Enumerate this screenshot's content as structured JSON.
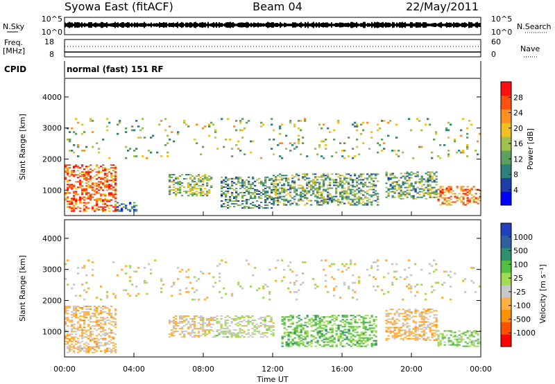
{
  "header": {
    "station": "Syowa East (fitACF)",
    "beam": "Beam 04",
    "date": "22/May/2011"
  },
  "top_panels": {
    "nsky_label": "N.Sky",
    "nsky_ticks": [
      "10^5",
      "10^0"
    ],
    "nsearch_label": "N.Search",
    "nsearch_ticks": [
      "10^5",
      "10^0"
    ],
    "freq_label": "Freq.",
    "freq_unit": "[MHz]",
    "freq_ticks": [
      "18",
      "8"
    ],
    "nave_label": "Nave",
    "nave_ticks": [
      "60",
      "0"
    ],
    "cpid_label": "CPID",
    "cpid_text": "normal (fast) 151 RF"
  },
  "colors": {
    "power_scale": [
      "#0000ff",
      "#1f3fa6",
      "#2f7f7f",
      "#5fa05f",
      "#9fc24f",
      "#f0c020",
      "#ff9020",
      "#ff5010",
      "#ff1010"
    ],
    "velocity_scale": [
      "#ff0000",
      "#ff5000",
      "#ff9000",
      "#ffb040",
      "#c8c8c8",
      "#a0dc50",
      "#50c040",
      "#2f8f70",
      "#2f5fa0",
      "#2040c0"
    ]
  },
  "chart_data": [
    {
      "type": "heatmap",
      "name": "power",
      "ylabel": "Slant Range [km]",
      "yticks": [
        "1000",
        "2000",
        "3000",
        "4000"
      ],
      "ylim": [
        180,
        4600
      ],
      "xlim": [
        0,
        24
      ],
      "colorbar_label": "Power [dB]",
      "colorbar_ticks": [
        "4",
        "8",
        "12",
        "16",
        "20",
        "24",
        "28"
      ],
      "colorbar_range": [
        0,
        30
      ],
      "regions": [
        {
          "t": [
            0.0,
            3.0
          ],
          "r": [
            300,
            1800
          ],
          "v": 24
        },
        {
          "t": [
            3.0,
            4.2
          ],
          "r": [
            300,
            600
          ],
          "v": 8
        },
        {
          "t": [
            6.0,
            8.5
          ],
          "r": [
            800,
            1500
          ],
          "v": 14
        },
        {
          "t": [
            9.0,
            12.0
          ],
          "r": [
            400,
            1400
          ],
          "v": 10
        },
        {
          "t": [
            12.0,
            18.0
          ],
          "r": [
            500,
            1500
          ],
          "v": 12
        },
        {
          "t": [
            18.5,
            21.5
          ],
          "r": [
            700,
            1600
          ],
          "v": 12
        },
        {
          "t": [
            21.5,
            24.0
          ],
          "r": [
            500,
            1100
          ],
          "v": 22
        },
        {
          "t": [
            0.0,
            24.0
          ],
          "r": [
            2000,
            3300
          ],
          "v": 14
        }
      ]
    },
    {
      "type": "heatmap",
      "name": "velocity",
      "ylabel": "Slant Range [km]",
      "yticks": [
        "1000",
        "2000",
        "3000",
        "4000"
      ],
      "ylim": [
        180,
        4600
      ],
      "xlim": [
        0,
        24
      ],
      "xticks": [
        "00:00",
        "04:00",
        "08:00",
        "12:00",
        "16:00",
        "20:00",
        "00:00"
      ],
      "xlabel": "Time UT",
      "colorbar_label": "Velocity [m s⁻¹]",
      "colorbar_ticks": [
        "-1000",
        "-500",
        "-100",
        "-25",
        "25",
        "100",
        "500",
        "1000"
      ],
      "colorbar_range": [
        -1200,
        1200
      ],
      "regions": [
        {
          "t": [
            0.0,
            3.0
          ],
          "r": [
            300,
            1800
          ],
          "v": -300
        },
        {
          "t": [
            6.0,
            8.5
          ],
          "r": [
            800,
            1500
          ],
          "v": -200
        },
        {
          "t": [
            8.5,
            12.0
          ],
          "r": [
            800,
            1500
          ],
          "v": 0
        },
        {
          "t": [
            12.5,
            18.0
          ],
          "r": [
            500,
            1500
          ],
          "v": 300
        },
        {
          "t": [
            18.5,
            21.5
          ],
          "r": [
            700,
            1700
          ],
          "v": -300
        },
        {
          "t": [
            21.5,
            24.0
          ],
          "r": [
            500,
            1000
          ],
          "v": 150
        },
        {
          "t": [
            0.0,
            24.0
          ],
          "r": [
            2000,
            3300
          ],
          "v": -150
        }
      ]
    }
  ]
}
